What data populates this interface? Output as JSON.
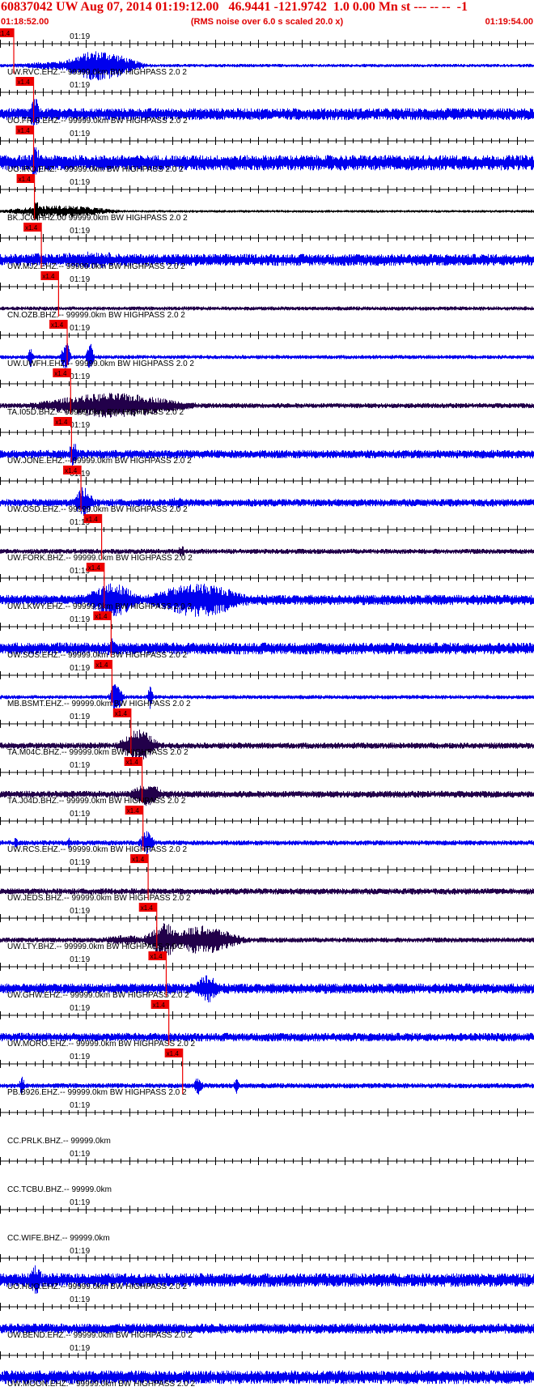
{
  "header": {
    "title": "60837042 UW Aug 07, 2014 01:19:12.00   46.9441 -121.9742  1.0 0.00 Mn st --- -- --  -1",
    "start_time": "01:18:52.00",
    "end_time": "01:19:54.00",
    "rms_note": "(RMS noise over 6.0 s scaled 20.0 x)"
  },
  "chart_data": {
    "type": "line",
    "title": "60837042 UW Aug 07, 2014 01:19:12.00   46.9441 -121.9742  1.0 0.00 Mn st --- -- --  -1",
    "x_range_seconds": [
      0,
      62
    ],
    "minute_label": "01:19",
    "pick_label": "x1.4",
    "colors": {
      "blue": "#0000ee",
      "dark": "#22004a",
      "black": "#000000",
      "pick": "#ee0000",
      "header_text": "#e00000"
    },
    "series": [
      {
        "name": "UW.RVC.EHZ.-- 99999.0km BW  HIGHPASS  2.0  2",
        "pick_s": 1.6,
        "color": "#0000ee",
        "noise": 0.1,
        "bursts": [
          [
            11.5,
            4.0,
            0.9
          ],
          [
            9.5,
            8.0,
            0.3
          ]
        ]
      },
      {
        "name": "UO.FRIS.EHZ.-- 99999.0km BW  HIGHPASS  2.0  2",
        "pick_s": 3.9,
        "color": "#0000ee",
        "noise": 0.35,
        "bursts": [
          [
            4.0,
            0.6,
            1.0
          ]
        ]
      },
      {
        "name": "UO.IRO.EHZ.-- 99999.0km BW  HIGHPASS  2.0  2",
        "pick_s": 3.9,
        "color": "#0000ee",
        "noise": 0.45,
        "bursts": [
          [
            4.1,
            0.6,
            1.0
          ]
        ]
      },
      {
        "name": "BK.JCC.HHZ.00 99999.0km BW  HIGHPASS  2.0  2",
        "pick_s": 4.0,
        "color": "#000000",
        "noise": 0.08,
        "bursts": [
          [
            4.2,
            0.6,
            0.6
          ],
          [
            7.0,
            6.0,
            0.35
          ]
        ]
      },
      {
        "name": "UW.MJ2.EHZ.-- 99999.0km BW  HIGHPASS  2.0  2",
        "pick_s": 4.8,
        "color": "#0000ee",
        "noise": 0.35,
        "bursts": [
          [
            10.5,
            6.0,
            0.5
          ],
          [
            4.2,
            2.5,
            0.4
          ]
        ]
      },
      {
        "name": "CN.OZB.BHZ.-- 99999.0km BW  HIGHPASS  2.0  2",
        "pick_s": 6.8,
        "color": "#22004a",
        "noise": 0.12,
        "bursts": []
      },
      {
        "name": "UW.UWFH.EHZ.-- 99999.0km BW  HIGHPASS  2.0  2",
        "pick_s": 7.8,
        "color": "#0000ee",
        "noise": 0.12,
        "bursts": [
          [
            7.6,
            0.5,
            1.0
          ],
          [
            3.5,
            0.3,
            0.6
          ],
          [
            10.4,
            0.4,
            0.9
          ]
        ]
      },
      {
        "name": "TA.I05D.BHZ.-- 99999.0km BW  HIGHPASS  2.0  2",
        "pick_s": 8.2,
        "color": "#22004a",
        "noise": 0.15,
        "bursts": [
          [
            13.0,
            8.0,
            0.75
          ]
        ]
      },
      {
        "name": "UW.JONE.EHZ.-- 99999.0km BW  HIGHPASS  2.0  2",
        "pick_s": 8.3,
        "color": "#0000ee",
        "noise": 0.25,
        "bursts": [
          [
            8.5,
            0.6,
            0.75
          ]
        ]
      },
      {
        "name": "UW.OSD.EHZ.-- 99999.0km BW  HIGHPASS  2.0  2",
        "pick_s": 9.4,
        "color": "#0000ee",
        "noise": 0.22,
        "bursts": [
          [
            9.7,
            1.0,
            1.0
          ],
          [
            20.5,
            1.0,
            0.35
          ]
        ]
      },
      {
        "name": "UW.FORK.BHZ.-- 99999.0km BW  HIGHPASS  2.0  2",
        "pick_s": 11.8,
        "color": "#22004a",
        "noise": 0.15,
        "bursts": [
          [
            21.0,
            0.4,
            0.4
          ]
        ]
      },
      {
        "name": "UW.LKWY.EHZ.-- 99999.0km BW  HIGHPASS  2.0  2",
        "pick_s": 12.1,
        "color": "#0000ee",
        "noise": 0.3,
        "bursts": [
          [
            13.0,
            3.0,
            1.0
          ],
          [
            23.0,
            5.5,
            1.0
          ]
        ]
      },
      {
        "name": "UW.SOS.EHZ.-- 99999.0km BW  HIGHPASS  2.0  2",
        "pick_s": 12.9,
        "color": "#0000ee",
        "noise": 0.35,
        "bursts": [
          [
            13.0,
            0.8,
            0.6
          ]
        ]
      },
      {
        "name": "MB.BSMT.EHZ.-- 99999.0km BW  HIGHPASS  2.0  2",
        "pick_s": 13.0,
        "color": "#0000ee",
        "noise": 0.12,
        "bursts": [
          [
            13.5,
            0.7,
            1.0
          ],
          [
            17.4,
            0.3,
            0.7
          ]
        ]
      },
      {
        "name": "TA.M04C.BHZ.-- 99999.0km BW  HIGHPASS  2.0  2",
        "pick_s": 15.2,
        "color": "#22004a",
        "noise": 0.18,
        "bursts": [
          [
            16.0,
            2.0,
            1.0
          ]
        ]
      },
      {
        "name": "TA.J04D.BHZ.-- 99999.0km BW  HIGHPASS  2.0  2",
        "pick_s": 16.5,
        "color": "#22004a",
        "noise": 0.2,
        "bursts": [
          [
            17.0,
            1.8,
            0.7
          ]
        ]
      },
      {
        "name": "UW.RCS.EHZ.-- 99999.0km BW  HIGHPASS  2.0  2",
        "pick_s": 16.6,
        "color": "#0000ee",
        "noise": 0.15,
        "bursts": [
          [
            17.0,
            0.8,
            0.7
          ],
          [
            1.8,
            0.3,
            0.35
          ],
          [
            8.0,
            0.3,
            0.35
          ]
        ]
      },
      {
        "name": "UW.JEDS.BHZ.-- 99999.0km BW  HIGHPASS  2.0  2",
        "pick_s": 17.2,
        "color": "#22004a",
        "noise": 0.18,
        "bursts": []
      },
      {
        "name": "UW.LTY.BHZ.-- 99999.0km BW  HIGHPASS  2.0  2",
        "pick_s": 18.2,
        "color": "#22004a",
        "noise": 0.15,
        "bursts": [
          [
            19.0,
            2.0,
            1.0
          ],
          [
            23.5,
            4.0,
            0.85
          ],
          [
            14.5,
            3.0,
            0.3
          ]
        ]
      },
      {
        "name": "UW.GHW.EHZ.-- 99999.0km BW  HIGHPASS  2.0  2",
        "pick_s": 19.3,
        "color": "#0000ee",
        "noise": 0.3,
        "bursts": [
          [
            24.0,
            1.4,
            0.9
          ],
          [
            19.5,
            0.6,
            0.4
          ]
        ]
      },
      {
        "name": "UW.MORO.EHZ.-- 99999.0km BW  HIGHPASS  2.0  2",
        "pick_s": 19.6,
        "color": "#0000ee",
        "noise": 0.25,
        "bursts": []
      },
      {
        "name": "PB.B926.EHZ.-- 99999.0km BW  HIGHPASS  2.0  2",
        "pick_s": 21.2,
        "color": "#0000ee",
        "noise": 0.15,
        "bursts": [
          [
            23.0,
            0.5,
            0.55
          ],
          [
            2.5,
            0.3,
            0.6
          ],
          [
            27.4,
            0.3,
            0.5
          ]
        ]
      },
      {
        "name": "CC.PRLK.BHZ.-- 99999.0km",
        "pick_s": null,
        "color": "#0000ee",
        "noise": 0,
        "bursts": []
      },
      {
        "name": "CC.TCBU.BHZ.-- 99999.0km",
        "pick_s": null,
        "color": "#0000ee",
        "noise": 0,
        "bursts": []
      },
      {
        "name": "CC.WIFE.BHZ.-- 99999.0km",
        "pick_s": null,
        "color": "#0000ee",
        "noise": 0,
        "bursts": []
      },
      {
        "name": "UO.HUO.EHZ.-- 99999.0km BW  HIGHPASS  2.0  2",
        "pick_s": null,
        "color": "#0000ee",
        "noise": 0.4,
        "bursts": [
          [
            4.1,
            0.8,
            0.95
          ]
        ]
      },
      {
        "name": "UW.BEND.EHZ.-- 99999.0km BW  HIGHPASS  2.0  2",
        "pick_s": null,
        "color": "#0000ee",
        "noise": 0.3,
        "bursts": []
      },
      {
        "name": "UW.MOON.EHZ.-- 99999.0km BW  HIGHPASS  2.0  2",
        "pick_s": null,
        "color": "#0000ee",
        "noise": 0.4,
        "bursts": []
      }
    ]
  }
}
